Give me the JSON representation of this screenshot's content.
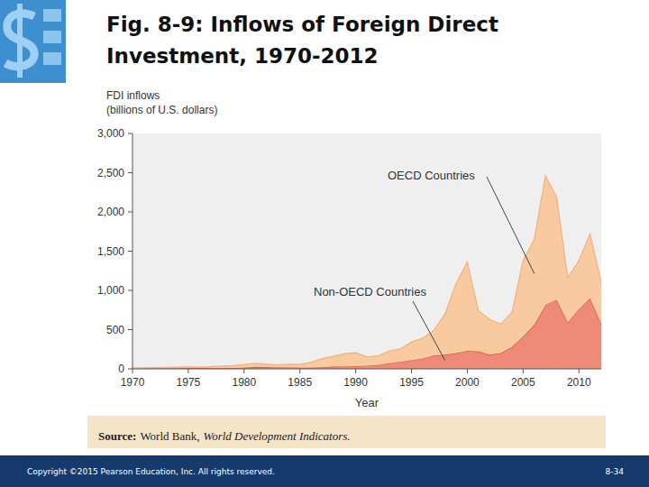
{
  "chart_data": {
    "type": "area",
    "title": "Fig. 8-9: Inflows of Foreign Direct Investment, 1970-2012",
    "y_label": [
      "FDI inflows",
      "(billions of U.S. dollars)"
    ],
    "x_label": "Year",
    "stacked": true,
    "grid": false,
    "x": [
      1970,
      1971,
      1972,
      1973,
      1974,
      1975,
      1976,
      1977,
      1978,
      1979,
      1980,
      1981,
      1982,
      1983,
      1984,
      1985,
      1986,
      1987,
      1988,
      1989,
      1990,
      1991,
      1992,
      1993,
      1994,
      1995,
      1996,
      1997,
      1998,
      1999,
      2000,
      2001,
      2002,
      2003,
      2004,
      2005,
      2006,
      2007,
      2008,
      2009,
      2010,
      2011,
      2012
    ],
    "series": [
      {
        "name": "Non-OECD Countries",
        "color": "#ee8a78",
        "values": [
          3,
          4,
          5,
          6,
          7,
          8,
          8,
          9,
          10,
          12,
          15,
          25,
          22,
          18,
          17,
          15,
          15,
          20,
          28,
          30,
          35,
          40,
          50,
          70,
          90,
          110,
          130,
          170,
          180,
          200,
          230,
          220,
          180,
          200,
          280,
          410,
          560,
          810,
          880,
          590,
          760,
          900,
          570
        ]
      },
      {
        "name": "OECD Countries",
        "color": "#f9c9a0",
        "values": [
          9,
          9,
          10,
          14,
          15,
          17,
          14,
          19,
          25,
          28,
          40,
          45,
          38,
          32,
          41,
          40,
          70,
          110,
          132,
          165,
          170,
          115,
          115,
          155,
          165,
          230,
          260,
          320,
          520,
          890,
          1130,
          520,
          450,
          370,
          440,
          970,
          1090,
          1650,
          1310,
          570,
          620,
          820,
          530
        ]
      }
    ],
    "xlim": [
      1970,
      2012
    ],
    "xticks": [
      1970,
      1975,
      1980,
      1985,
      1990,
      1995,
      2000,
      2005,
      2010
    ],
    "ylim": [
      0,
      3000
    ],
    "yticks": [
      0,
      500,
      {
        "value": 1000,
        "label": "1,000"
      },
      {
        "value": 1500,
        "label": "1,500"
      },
      {
        "value": 2000,
        "label": "2,000"
      },
      {
        "value": 2500,
        "label": "2,500"
      },
      {
        "value": 3000,
        "label": "3,000"
      }
    ],
    "source_label": "Source:",
    "source_text": "World Bank,",
    "source_title": "World Development Indicators."
  },
  "footer": {
    "copyright": "Copyright ©2015 Pearson Education, Inc. All rights reserved.",
    "page": "8-34"
  }
}
